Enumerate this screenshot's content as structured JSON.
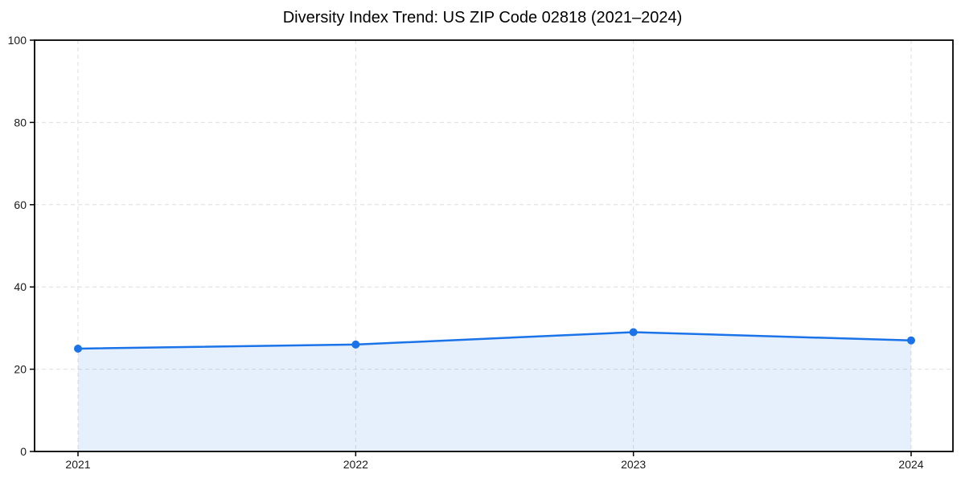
{
  "header": {
    "title": "Diversity Index Trend: US ZIP Code 02818 (2021–2024)"
  },
  "chart_data": {
    "type": "line",
    "title": "Diversity Index Trend: US ZIP Code 02818 (2021–2024)",
    "x": [
      "2021",
      "2022",
      "2023",
      "2024"
    ],
    "series": [
      {
        "name": "Diversity Index",
        "values": [
          25,
          26,
          29,
          27
        ]
      }
    ],
    "xlabel": "",
    "ylabel": "",
    "ylim": [
      0,
      100
    ],
    "yticks": [
      0,
      20,
      40,
      60,
      80,
      100
    ],
    "grid": {
      "visible": true,
      "style": "dashed",
      "axes": "both"
    },
    "legend": {
      "visible": false
    },
    "area_fill": true,
    "marker": "circle",
    "colors": {
      "line": "#1a73e8",
      "marker": "#1a73e8",
      "area": "#1a73e8",
      "area_opacity": 0.11,
      "grid": "#dedede",
      "axis": "#000000",
      "tick_label": "#1a1a1a",
      "title": "#000000",
      "background": "#ffffff"
    }
  }
}
